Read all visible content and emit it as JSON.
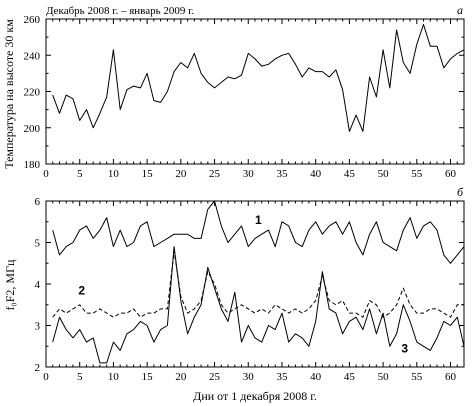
{
  "chart_data": [
    {
      "type": "line",
      "panel_letter": "а",
      "title": "Декабрь 2008 г. – январь 2009 г.",
      "ylabel": "Температура на высоте 30 км",
      "xlabel": "",
      "xlim": [
        0,
        62
      ],
      "ylim": [
        180,
        260
      ],
      "xticks": [
        0,
        5,
        10,
        15,
        20,
        25,
        30,
        35,
        40,
        45,
        50,
        55,
        60
      ],
      "yticks": [
        180,
        200,
        220,
        240,
        260
      ],
      "grid": false,
      "series": [
        {
          "name": "",
          "x": [
            1,
            2,
            3,
            4,
            5,
            6,
            7,
            8,
            9,
            10,
            11,
            12,
            13,
            14,
            15,
            16,
            17,
            18,
            19,
            20,
            21,
            22,
            23,
            24,
            25,
            26,
            27,
            28,
            29,
            30,
            31,
            32,
            33,
            34,
            35,
            36,
            37,
            38,
            39,
            40,
            41,
            42,
            43,
            44,
            45,
            46,
            47,
            48,
            49,
            50,
            51,
            52,
            53,
            54,
            55,
            56,
            57,
            58,
            59,
            60,
            61,
            62
          ],
          "y": [
            218,
            208,
            218,
            216,
            204,
            210,
            200,
            208,
            217,
            243,
            210,
            221,
            223,
            222,
            230,
            215,
            214,
            220,
            231,
            236,
            233,
            241,
            230,
            225,
            222,
            225,
            228,
            227,
            229,
            241,
            238,
            234,
            235,
            238,
            240,
            241,
            235,
            228,
            233,
            231,
            231,
            228,
            232,
            221,
            198,
            207,
            198,
            228,
            217,
            243,
            222,
            254,
            236,
            230,
            246,
            257,
            245,
            245,
            233,
            238,
            241,
            243
          ]
        }
      ]
    },
    {
      "type": "line",
      "panel_letter": "б",
      "title": "",
      "ylabel": "f₀F2,  МГц",
      "xlabel": "Дни от 1 декабря 2008 г.",
      "xlim": [
        0,
        62
      ],
      "ylim": [
        2,
        6
      ],
      "xticks": [
        0,
        5,
        10,
        15,
        20,
        25,
        30,
        35,
        40,
        45,
        50,
        55,
        60
      ],
      "yticks": [
        2,
        3,
        4,
        5,
        6
      ],
      "grid": false,
      "series": [
        {
          "name": "1",
          "style": "solid",
          "x": [
            1,
            2,
            3,
            4,
            5,
            6,
            7,
            8,
            9,
            10,
            11,
            12,
            13,
            14,
            15,
            16,
            17,
            18,
            19,
            20,
            21,
            22,
            23,
            24,
            25,
            26,
            27,
            28,
            29,
            30,
            31,
            32,
            33,
            34,
            35,
            36,
            37,
            38,
            39,
            40,
            41,
            42,
            43,
            44,
            45,
            46,
            47,
            48,
            49,
            50,
            51,
            52,
            53,
            54,
            55,
            56,
            57,
            58,
            59,
            60,
            61,
            62
          ],
          "y": [
            5.3,
            4.7,
            4.9,
            5.0,
            5.3,
            5.4,
            5.1,
            5.3,
            5.6,
            4.9,
            5.3,
            4.9,
            5.0,
            5.4,
            5.5,
            4.9,
            5.0,
            5.1,
            5.2,
            5.2,
            5.2,
            5.1,
            5.1,
            5.8,
            6.0,
            5.4,
            5.0,
            5.2,
            5.4,
            4.9,
            5.1,
            5.2,
            5.3,
            4.9,
            5.5,
            5.4,
            5.0,
            4.9,
            5.3,
            5.5,
            5.2,
            5.4,
            5.5,
            5.2,
            5.5,
            5.0,
            4.7,
            5.2,
            5.5,
            5.0,
            4.9,
            4.8,
            5.3,
            5.6,
            5.1,
            5.4,
            5.5,
            5.3,
            4.7,
            4.5,
            4.7,
            4.9
          ]
        },
        {
          "name": "2",
          "style": "dashed",
          "x": [
            1,
            2,
            3,
            4,
            5,
            6,
            7,
            8,
            9,
            10,
            11,
            12,
            13,
            14,
            15,
            16,
            17,
            18,
            19,
            20,
            21,
            22,
            23,
            24,
            25,
            26,
            27,
            28,
            29,
            30,
            31,
            32,
            33,
            34,
            35,
            36,
            37,
            38,
            39,
            40,
            41,
            42,
            43,
            44,
            45,
            46,
            47,
            48,
            49,
            50,
            51,
            52,
            53,
            54,
            55,
            56,
            57,
            58,
            59,
            60,
            61,
            62
          ],
          "y": [
            3.2,
            3.4,
            3.3,
            3.4,
            3.5,
            3.3,
            3.3,
            3.4,
            3.3,
            3.2,
            3.3,
            3.3,
            3.4,
            3.2,
            3.3,
            3.3,
            3.4,
            3.4,
            4.8,
            3.7,
            3.3,
            3.4,
            3.6,
            4.3,
            4.0,
            3.5,
            3.3,
            3.4,
            3.5,
            3.4,
            3.3,
            3.4,
            3.3,
            3.5,
            3.4,
            3.3,
            3.4,
            3.3,
            3.4,
            3.6,
            4.2,
            3.6,
            3.5,
            3.6,
            3.3,
            3.3,
            3.2,
            3.6,
            3.5,
            3.2,
            3.3,
            3.5,
            3.9,
            3.5,
            3.3,
            3.3,
            3.4,
            3.4,
            3.3,
            3.2,
            3.5,
            3.5
          ]
        },
        {
          "name": "3",
          "style": "solid",
          "x": [
            1,
            2,
            3,
            4,
            5,
            6,
            7,
            8,
            9,
            10,
            11,
            12,
            13,
            14,
            15,
            16,
            17,
            18,
            19,
            20,
            21,
            22,
            23,
            24,
            25,
            26,
            27,
            28,
            29,
            30,
            31,
            32,
            33,
            34,
            35,
            36,
            37,
            38,
            39,
            40,
            41,
            42,
            43,
            44,
            45,
            46,
            47,
            48,
            49,
            50,
            51,
            52,
            53,
            54,
            55,
            56,
            57,
            58,
            59,
            60,
            61,
            62
          ],
          "y": [
            2.6,
            3.2,
            2.9,
            2.7,
            2.9,
            2.6,
            2.7,
            2.1,
            2.1,
            2.6,
            2.4,
            2.8,
            2.9,
            3.1,
            3.0,
            2.6,
            2.9,
            3.0,
            4.9,
            3.6,
            2.8,
            3.2,
            3.5,
            4.4,
            3.9,
            3.4,
            3.1,
            3.8,
            2.6,
            3.0,
            2.7,
            2.6,
            3.0,
            2.9,
            3.3,
            2.6,
            2.8,
            2.7,
            2.5,
            3.1,
            4.3,
            3.4,
            3.3,
            2.8,
            3.1,
            3.2,
            2.9,
            3.4,
            2.8,
            3.3,
            2.5,
            2.8,
            3.5,
            3.1,
            2.6,
            2.5,
            2.4,
            2.7,
            3.1,
            3.0,
            3.2,
            2.5
          ]
        }
      ]
    }
  ]
}
